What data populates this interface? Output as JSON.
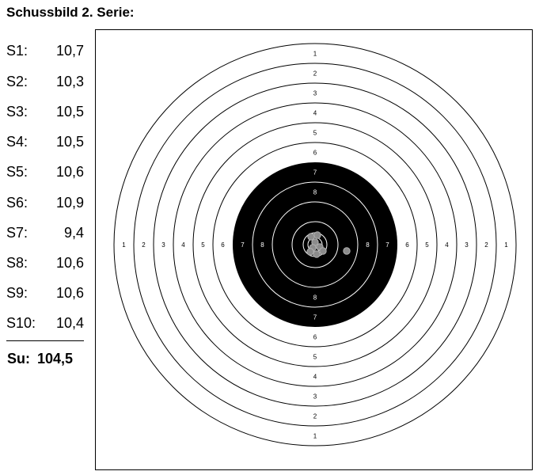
{
  "header": {
    "title": "Schussbild 2. Serie:"
  },
  "shots": [
    {
      "label": "S1:",
      "value": "10,7"
    },
    {
      "label": "S2:",
      "value": "10,3"
    },
    {
      "label": "S3:",
      "value": "10,5"
    },
    {
      "label": "S4:",
      "value": "10,5"
    },
    {
      "label": "S5:",
      "value": "10,6"
    },
    {
      "label": "S6:",
      "value": "10,9"
    },
    {
      "label": "S7:",
      "value": "9,4"
    },
    {
      "label": "S8:",
      "value": "10,6"
    },
    {
      "label": "S9:",
      "value": "10,6"
    },
    {
      "label": "S10:",
      "value": "10,4"
    }
  ],
  "total": {
    "label": "Su:",
    "value": "104,5"
  },
  "target": {
    "ring_numbers": [
      "1",
      "2",
      "3",
      "4",
      "5",
      "6",
      "7",
      "8"
    ],
    "colors": {
      "black_center": "#000000",
      "ring_line": "#000000",
      "inner_ring_line": "#ffffff",
      "shot_hole": "#8c8c8c"
    }
  }
}
